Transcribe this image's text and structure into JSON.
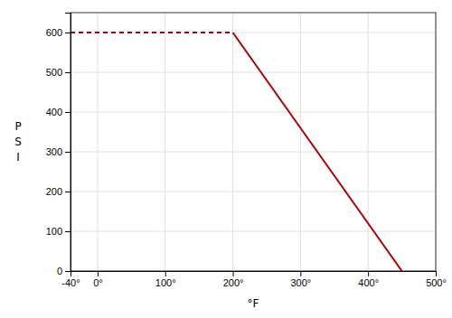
{
  "chart_data": {
    "type": "line",
    "xlabel": "°F",
    "ylabel": "PSI",
    "xlim": [
      -40,
      500
    ],
    "ylim": [
      0,
      650
    ],
    "xticks": [
      {
        "value": -40,
        "label": "-40°"
      },
      {
        "value": 0,
        "label": "0°"
      },
      {
        "value": 100,
        "label": "100°"
      },
      {
        "value": 200,
        "label": "200°"
      },
      {
        "value": 300,
        "label": "300°"
      },
      {
        "value": 400,
        "label": "400°"
      },
      {
        "value": 500,
        "label": "500°"
      }
    ],
    "yticks": [
      0,
      100,
      200,
      300,
      400,
      500,
      600
    ],
    "grid": true,
    "series": [
      {
        "x": [
          -40,
          200
        ],
        "values": [
          600,
          600
        ],
        "color": "#aa0000",
        "line_style": "dashed"
      },
      {
        "x": [
          200,
          450
        ],
        "values": [
          600,
          0
        ],
        "color": "#aa0000",
        "line_style": "solid"
      }
    ]
  }
}
